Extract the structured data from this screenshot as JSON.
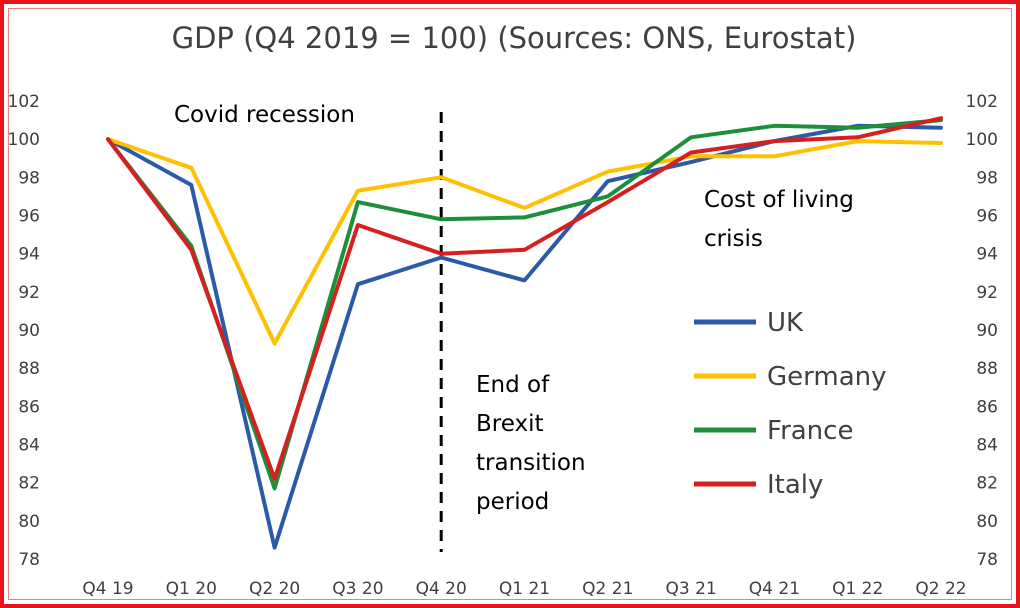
{
  "chart_data": {
    "type": "line",
    "title": "GDP (Q4 2019 = 100) (Sources: ONS, Eurostat)",
    "xlabel": "",
    "ylabel": "",
    "categories": [
      "Q4 19",
      "Q1 20",
      "Q2 20",
      "Q3 20",
      "Q4 20",
      "Q1 21",
      "Q2 21",
      "Q3 21",
      "Q4 21",
      "Q1 22",
      "Q2 22"
    ],
    "ylim": [
      78,
      102
    ],
    "yticks": [
      78,
      80,
      82,
      84,
      86,
      88,
      90,
      92,
      94,
      96,
      98,
      100,
      102
    ],
    "right_axis": true,
    "grid": false,
    "legend_position": "right",
    "series": [
      {
        "name": "UK",
        "color": "#2a5aa8",
        "values": [
          100,
          97.6,
          78.6,
          92.4,
          93.8,
          92.6,
          97.8,
          98.8,
          99.9,
          100.7,
          100.6
        ]
      },
      {
        "name": "Germany",
        "color": "#ffc000",
        "values": [
          100,
          98.5,
          89.3,
          97.3,
          98.0,
          96.4,
          98.3,
          99.1,
          99.1,
          99.9,
          99.8
        ]
      },
      {
        "name": "France",
        "color": "#1d8f3a",
        "values": [
          100,
          94.4,
          81.7,
          96.7,
          95.8,
          95.9,
          97.0,
          100.1,
          100.7,
          100.6,
          101.0
        ]
      },
      {
        "name": "Italy",
        "color": "#d61f1f",
        "values": [
          100,
          94.2,
          82.2,
          95.5,
          94.0,
          94.2,
          96.7,
          99.3,
          99.9,
          100.1,
          101.1
        ]
      }
    ],
    "annotations": [
      {
        "text": [
          "Covid recession"
        ]
      },
      {
        "text": [
          "End of",
          "Brexit",
          "transition",
          "period"
        ],
        "marker": "dashed vertical line at Q4 20"
      },
      {
        "text": [
          "Cost of living",
          "crisis"
        ]
      }
    ]
  }
}
